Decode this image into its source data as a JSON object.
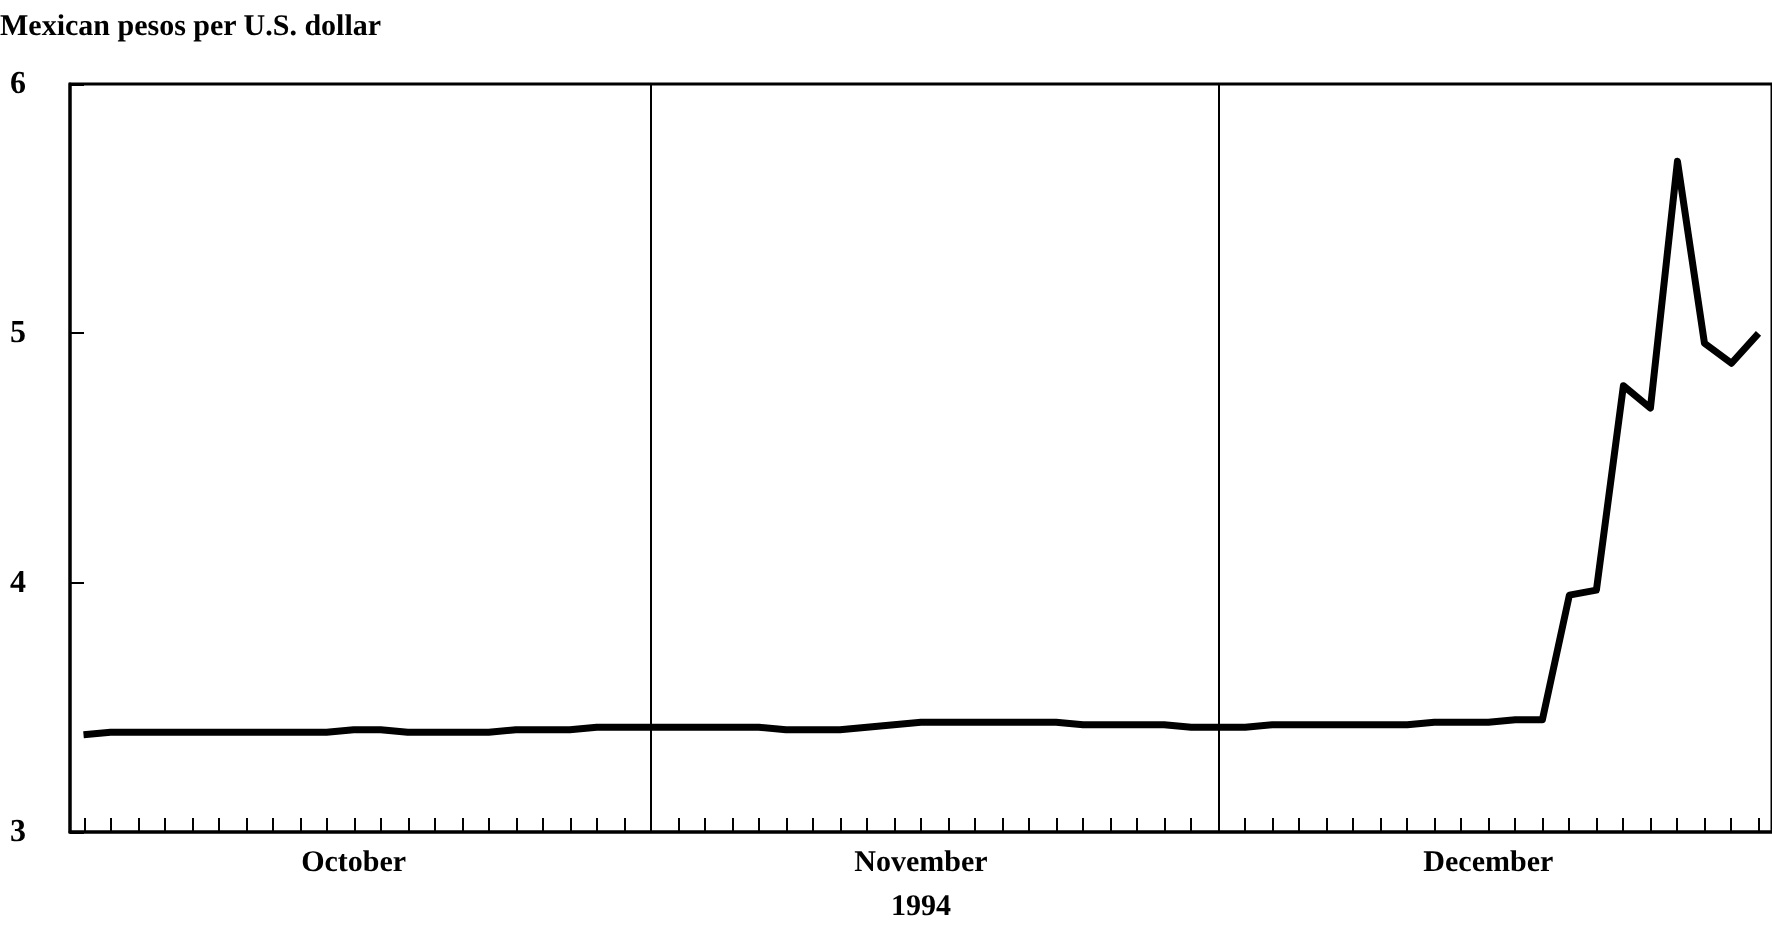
{
  "chart_data": {
    "type": "line",
    "ylabel": "Mexican pesos per U.S. dollar",
    "xlabel": "1994",
    "categories": [
      null,
      null,
      null,
      null,
      null,
      null,
      null,
      null,
      null,
      null,
      "October",
      null,
      null,
      null,
      null,
      null,
      null,
      null,
      null,
      null,
      null,
      null,
      null,
      null,
      null,
      null,
      null,
      null,
      null,
      null,
      null,
      "November",
      null,
      null,
      null,
      null,
      null,
      null,
      null,
      null,
      null,
      null,
      null,
      null,
      null,
      null,
      null,
      null,
      null,
      null,
      null,
      null,
      "December",
      null,
      null,
      null,
      null,
      null,
      null,
      null,
      null,
      null,
      null
    ],
    "series": [
      {
        "color": "#000000",
        "values": [
          3.39,
          3.4,
          3.4,
          3.4,
          3.4,
          3.4,
          3.4,
          3.4,
          3.4,
          3.4,
          3.41,
          3.41,
          3.4,
          3.4,
          3.4,
          3.4,
          3.41,
          3.41,
          3.41,
          3.42,
          3.42,
          3.42,
          3.42,
          3.42,
          3.42,
          3.42,
          3.41,
          3.41,
          3.41,
          3.42,
          3.43,
          3.44,
          3.44,
          3.44,
          3.44,
          3.44,
          3.44,
          3.43,
          3.43,
          3.43,
          3.43,
          3.42,
          3.42,
          3.42,
          3.43,
          3.43,
          3.43,
          3.43,
          3.43,
          3.43,
          3.44,
          3.44,
          3.44,
          3.45,
          3.45,
          3.95,
          3.97,
          4.79,
          4.7,
          5.69,
          4.96,
          4.88,
          5.0
        ]
      }
    ],
    "ylim": [
      3,
      6
    ],
    "yticks": [
      3,
      4,
      5,
      6
    ],
    "marker": "none",
    "line_style": "solid"
  }
}
